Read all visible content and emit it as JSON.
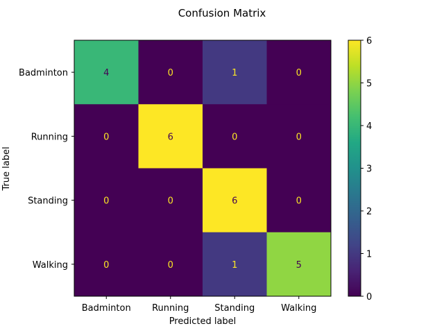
{
  "chart_data": {
    "type": "heatmap",
    "title": "Confusion Matrix",
    "xlabel": "Predicted label",
    "ylabel": "True label",
    "x_categories": [
      "Badminton",
      "Running",
      "Standing",
      "Walking"
    ],
    "y_categories": [
      "Badminton",
      "Running",
      "Standing",
      "Walking"
    ],
    "values": [
      [
        4,
        0,
        1,
        0
      ],
      [
        0,
        6,
        0,
        0
      ],
      [
        0,
        0,
        6,
        0
      ],
      [
        0,
        0,
        1,
        5
      ]
    ],
    "colormap": "viridis",
    "vmin": 0,
    "vmax": 6,
    "colorbar_ticks": [
      "0",
      "1",
      "2",
      "3",
      "4",
      "5",
      "6"
    ],
    "colors": {
      "low": "#440154",
      "high": "#fde725",
      "text_on_dark": "#fde725",
      "text_on_light": "#440154"
    }
  }
}
